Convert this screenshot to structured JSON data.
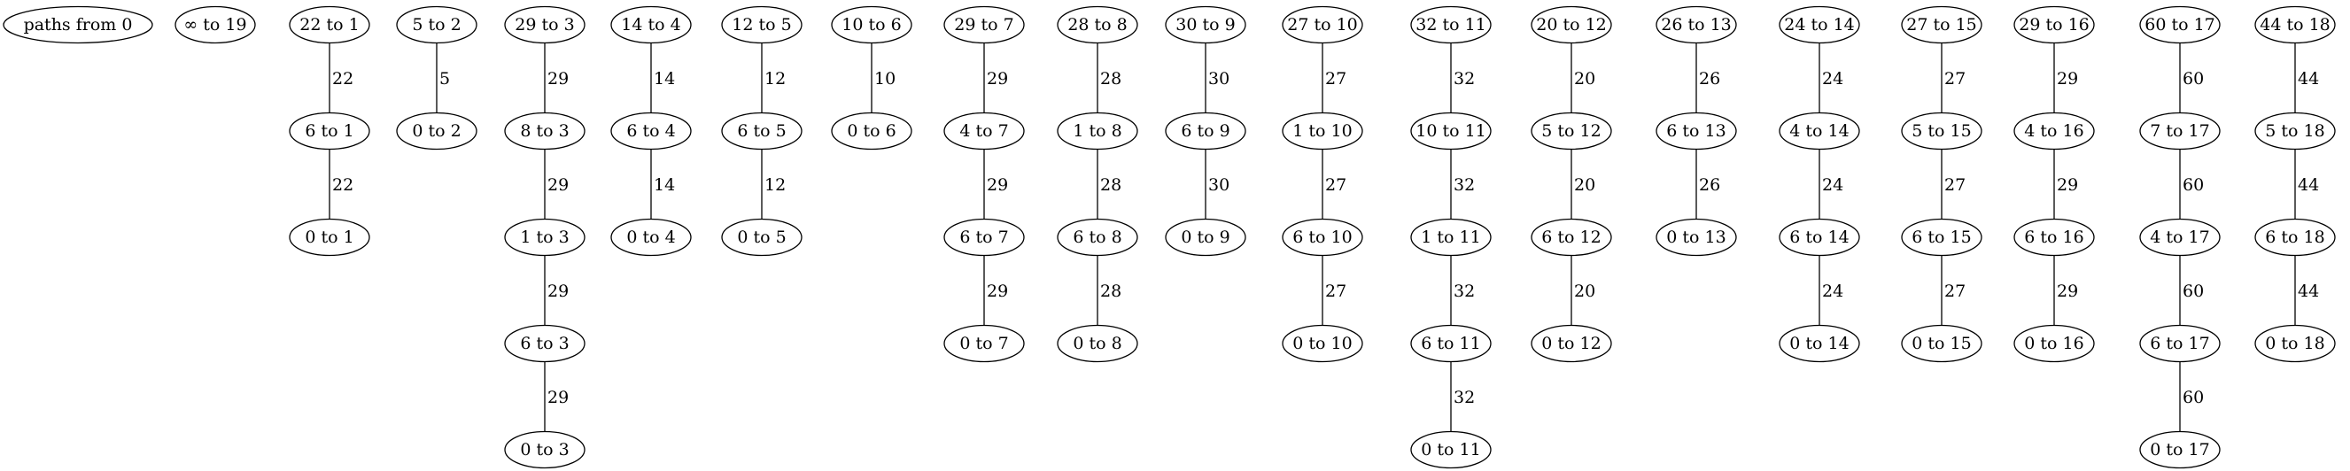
{
  "graph": {
    "nodes": [
      {
        "id": "root",
        "label": "paths from 0"
      },
      {
        "id": "inf19",
        "label": "∞ to 19"
      },
      {
        "id": "n22_1",
        "label": "22 to 1"
      },
      {
        "id": "n5_2",
        "label": "5 to 2"
      },
      {
        "id": "n29_3",
        "label": "29 to 3"
      },
      {
        "id": "n14_4",
        "label": "14 to 4"
      },
      {
        "id": "n12_5",
        "label": "12 to 5"
      },
      {
        "id": "n10_6",
        "label": "10 to 6"
      },
      {
        "id": "n29_7",
        "label": "29 to 7"
      },
      {
        "id": "n28_8",
        "label": "28 to 8"
      },
      {
        "id": "n30_9",
        "label": "30 to 9"
      },
      {
        "id": "n27_10",
        "label": "27 to 10"
      },
      {
        "id": "n32_11",
        "label": "32 to 11"
      },
      {
        "id": "n20_12",
        "label": "20 to 12"
      },
      {
        "id": "n26_13",
        "label": "26 to 13"
      },
      {
        "id": "n24_14",
        "label": "24 to 14"
      },
      {
        "id": "n27_15",
        "label": "27 to 15"
      },
      {
        "id": "n29_16",
        "label": "29 to 16"
      },
      {
        "id": "n60_17",
        "label": "60 to 17"
      },
      {
        "id": "n44_18",
        "label": "44 to 18"
      },
      {
        "id": "a6_1",
        "label": "6 to 1"
      },
      {
        "id": "a0_2",
        "label": "0 to 2"
      },
      {
        "id": "a8_3",
        "label": "8 to 3"
      },
      {
        "id": "a6_4",
        "label": "6 to 4"
      },
      {
        "id": "a6_5",
        "label": "6 to 5"
      },
      {
        "id": "a0_6",
        "label": "0 to 6"
      },
      {
        "id": "a4_7",
        "label": "4 to 7"
      },
      {
        "id": "a1_8",
        "label": "1 to 8"
      },
      {
        "id": "a6_9",
        "label": "6 to 9"
      },
      {
        "id": "a1_10",
        "label": "1 to 10"
      },
      {
        "id": "a10_11",
        "label": "10 to 11"
      },
      {
        "id": "a5_12",
        "label": "5 to 12"
      },
      {
        "id": "a6_13",
        "label": "6 to 13"
      },
      {
        "id": "a4_14",
        "label": "4 to 14"
      },
      {
        "id": "a5_15",
        "label": "5 to 15"
      },
      {
        "id": "a4_16",
        "label": "4 to 16"
      },
      {
        "id": "a7_17",
        "label": "7 to 17"
      },
      {
        "id": "a5_18",
        "label": "5 to 18"
      },
      {
        "id": "b0_1",
        "label": "0 to 1"
      },
      {
        "id": "b1_3",
        "label": "1 to 3"
      },
      {
        "id": "b0_4",
        "label": "0 to 4"
      },
      {
        "id": "b0_5",
        "label": "0 to 5"
      },
      {
        "id": "b6_7",
        "label": "6 to 7"
      },
      {
        "id": "b6_8",
        "label": "6 to 8"
      },
      {
        "id": "b0_9",
        "label": "0 to 9"
      },
      {
        "id": "b6_10",
        "label": "6 to 10"
      },
      {
        "id": "b1_11",
        "label": "1 to 11"
      },
      {
        "id": "b6_12",
        "label": "6 to 12"
      },
      {
        "id": "b0_13",
        "label": "0 to 13"
      },
      {
        "id": "b6_14",
        "label": "6 to 14"
      },
      {
        "id": "b6_15",
        "label": "6 to 15"
      },
      {
        "id": "b6_16",
        "label": "6 to 16"
      },
      {
        "id": "b4_17",
        "label": "4 to 17"
      },
      {
        "id": "b6_18",
        "label": "6 to 18"
      },
      {
        "id": "c6_3",
        "label": "6 to 3"
      },
      {
        "id": "c0_7",
        "label": "0 to 7"
      },
      {
        "id": "c0_8",
        "label": "0 to 8"
      },
      {
        "id": "c0_10",
        "label": "0 to 10"
      },
      {
        "id": "c6_11",
        "label": "6 to 11"
      },
      {
        "id": "c0_12",
        "label": "0 to 12"
      },
      {
        "id": "c0_14",
        "label": "0 to 14"
      },
      {
        "id": "c0_15",
        "label": "0 to 15"
      },
      {
        "id": "c0_16",
        "label": "0 to 16"
      },
      {
        "id": "c6_17",
        "label": "6 to 17"
      },
      {
        "id": "c0_18",
        "label": "0 to 18"
      },
      {
        "id": "d0_3",
        "label": "0 to 3"
      },
      {
        "id": "d0_11",
        "label": "0 to 11"
      },
      {
        "id": "d0_17",
        "label": "0 to 17"
      }
    ],
    "edges": [
      {
        "from": "n22_1",
        "to": "a6_1",
        "label": "22"
      },
      {
        "from": "a6_1",
        "to": "b0_1",
        "label": "22"
      },
      {
        "from": "n5_2",
        "to": "a0_2",
        "label": "5"
      },
      {
        "from": "n29_3",
        "to": "a8_3",
        "label": "29"
      },
      {
        "from": "a8_3",
        "to": "b1_3",
        "label": "29"
      },
      {
        "from": "b1_3",
        "to": "c6_3",
        "label": "29"
      },
      {
        "from": "c6_3",
        "to": "d0_3",
        "label": "29"
      },
      {
        "from": "n14_4",
        "to": "a6_4",
        "label": "14"
      },
      {
        "from": "a6_4",
        "to": "b0_4",
        "label": "14"
      },
      {
        "from": "n12_5",
        "to": "a6_5",
        "label": "12"
      },
      {
        "from": "a6_5",
        "to": "b0_5",
        "label": "12"
      },
      {
        "from": "n10_6",
        "to": "a0_6",
        "label": "10"
      },
      {
        "from": "n29_7",
        "to": "a4_7",
        "label": "29"
      },
      {
        "from": "a4_7",
        "to": "b6_7",
        "label": "29"
      },
      {
        "from": "b6_7",
        "to": "c0_7",
        "label": "29"
      },
      {
        "from": "n28_8",
        "to": "a1_8",
        "label": "28"
      },
      {
        "from": "a1_8",
        "to": "b6_8",
        "label": "28"
      },
      {
        "from": "b6_8",
        "to": "c0_8",
        "label": "28"
      },
      {
        "from": "n30_9",
        "to": "a6_9",
        "label": "30"
      },
      {
        "from": "a6_9",
        "to": "b0_9",
        "label": "30"
      },
      {
        "from": "n27_10",
        "to": "a1_10",
        "label": "27"
      },
      {
        "from": "a1_10",
        "to": "b6_10",
        "label": "27"
      },
      {
        "from": "b6_10",
        "to": "c0_10",
        "label": "27"
      },
      {
        "from": "n32_11",
        "to": "a10_11",
        "label": "32"
      },
      {
        "from": "a10_11",
        "to": "b1_11",
        "label": "32"
      },
      {
        "from": "b1_11",
        "to": "c6_11",
        "label": "32"
      },
      {
        "from": "c6_11",
        "to": "d0_11",
        "label": "32"
      },
      {
        "from": "n20_12",
        "to": "a5_12",
        "label": "20"
      },
      {
        "from": "a5_12",
        "to": "b6_12",
        "label": "20"
      },
      {
        "from": "b6_12",
        "to": "c0_12",
        "label": "20"
      },
      {
        "from": "n26_13",
        "to": "a6_13",
        "label": "26"
      },
      {
        "from": "a6_13",
        "to": "b0_13",
        "label": "26"
      },
      {
        "from": "n24_14",
        "to": "a4_14",
        "label": "24"
      },
      {
        "from": "a4_14",
        "to": "b6_14",
        "label": "24"
      },
      {
        "from": "b6_14",
        "to": "c0_14",
        "label": "24"
      },
      {
        "from": "n27_15",
        "to": "a5_15",
        "label": "27"
      },
      {
        "from": "a5_15",
        "to": "b6_15",
        "label": "27"
      },
      {
        "from": "b6_15",
        "to": "c0_15",
        "label": "27"
      },
      {
        "from": "n29_16",
        "to": "a4_16",
        "label": "29"
      },
      {
        "from": "a4_16",
        "to": "b6_16",
        "label": "29"
      },
      {
        "from": "b6_16",
        "to": "c0_16",
        "label": "29"
      },
      {
        "from": "n60_17",
        "to": "a7_17",
        "label": "60"
      },
      {
        "from": "a7_17",
        "to": "b4_17",
        "label": "60"
      },
      {
        "from": "b4_17",
        "to": "c6_17",
        "label": "60"
      },
      {
        "from": "c6_17",
        "to": "d0_17",
        "label": "60"
      },
      {
        "from": "n44_18",
        "to": "a5_18",
        "label": "44"
      },
      {
        "from": "a5_18",
        "to": "b6_18",
        "label": "44"
      },
      {
        "from": "b6_18",
        "to": "c0_18",
        "label": "44"
      }
    ]
  }
}
